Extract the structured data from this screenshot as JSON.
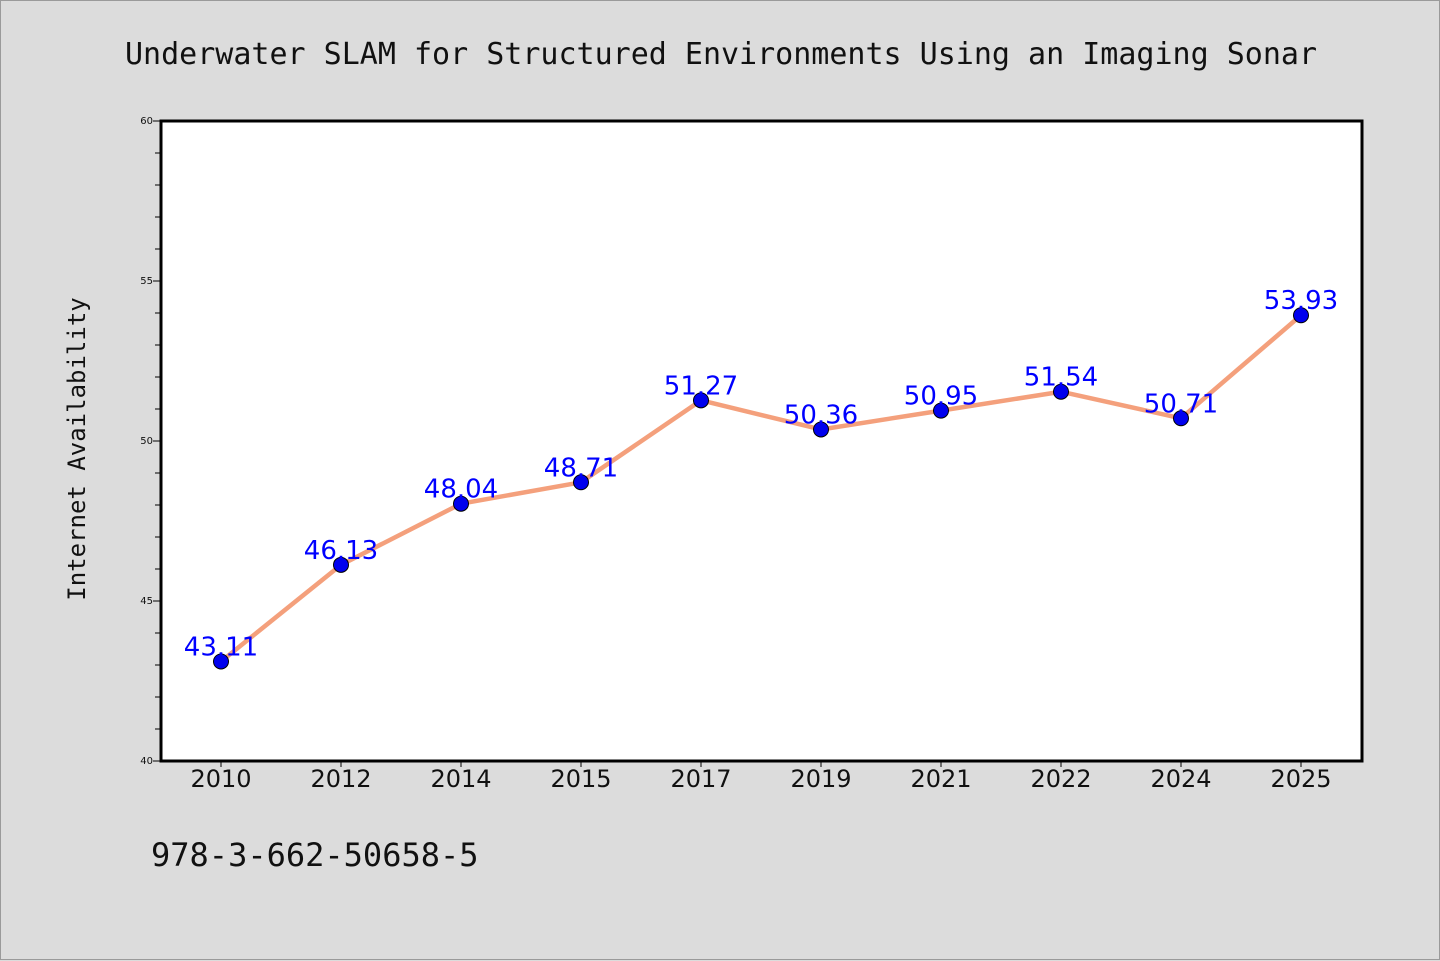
{
  "chart_data": {
    "type": "line",
    "title": "Underwater SLAM for Structured Environments Using an Imaging Sonar",
    "xlabel": "",
    "ylabel": "Internet Availability",
    "categories": [
      "2010",
      "2012",
      "2014",
      "2015",
      "2017",
      "2019",
      "2021",
      "2022",
      "2024",
      "2025"
    ],
    "series": [
      {
        "values": [
          43.11,
          46.13,
          48.04,
          48.71,
          51.27,
          50.36,
          50.95,
          51.54,
          50.71,
          53.93
        ]
      }
    ],
    "data_labels": [
      "43.11",
      "46.13",
      "48.04",
      "48.71",
      "51.27",
      "50.36",
      "50.95",
      "51.54",
      "50.71",
      "53.93"
    ],
    "ylim": [
      40,
      60
    ],
    "yticks": [
      40,
      45,
      50,
      55,
      60
    ],
    "ytick_labels": [
      "40",
      "45",
      "50",
      "55",
      "60"
    ],
    "grid": false,
    "legend": "none",
    "colors": {
      "line": "#f4a07c",
      "marker": "#0000ee",
      "data_label": "#0000ff",
      "plot_background": "#ffffff",
      "figure_background": "#dcdcdc",
      "axes_border": "#000000"
    }
  },
  "footnote": "978-3-662-50658-5"
}
